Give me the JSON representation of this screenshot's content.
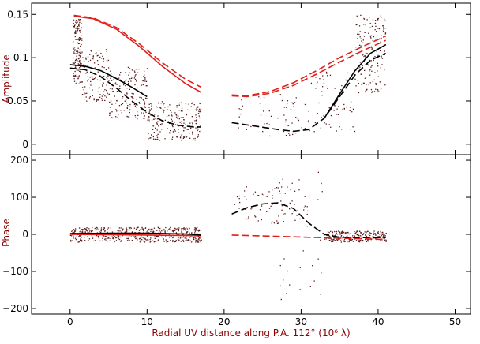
{
  "chart_data": {
    "type": "scatter",
    "xlabel": "Radial UV distance along P.A. 112°  (10⁶ λ)",
    "xlim": [
      -5,
      52
    ],
    "xticks": [
      0,
      10,
      20,
      30,
      40,
      50
    ],
    "grid": false,
    "legend": "none",
    "panels": [
      {
        "name": "amplitude",
        "ylabel": "Amplitude",
        "ylim": [
          -0.012,
          0.163
        ],
        "yticks": [
          0,
          0.05,
          0.1,
          0.15
        ],
        "ytick_labels": [
          "0",
          "0.05",
          "0.1",
          "0.15"
        ],
        "scatter_color": "#5a1a1a",
        "scatter_clusters": [
          {
            "x": [
              0.3,
              1.5
            ],
            "y": [
              0.07,
              0.145
            ],
            "n": 160
          },
          {
            "x": [
              1.5,
              5
            ],
            "y": [
              0.05,
              0.11
            ],
            "n": 120
          },
          {
            "x": [
              5,
              10
            ],
            "y": [
              0.03,
              0.09
            ],
            "n": 160
          },
          {
            "x": [
              10,
              17
            ],
            "y": [
              0.005,
              0.05
            ],
            "n": 220
          },
          {
            "x": [
              21,
              31
            ],
            "y": [
              0.01,
              0.06
            ],
            "n": 60
          },
          {
            "x": [
              31,
              37
            ],
            "y": [
              0.015,
              0.09
            ],
            "n": 70
          },
          {
            "x": [
              37,
              41
            ],
            "y": [
              0.06,
              0.15
            ],
            "n": 160
          }
        ],
        "series": [
          {
            "color": "#e0201a",
            "dash": "solid",
            "x": [
              0.5,
              3,
              6,
              9,
              12,
              15,
              17
            ],
            "y": [
              0.148,
              0.145,
              0.133,
              0.113,
              0.09,
              0.07,
              0.06
            ]
          },
          {
            "color": "#e0201a",
            "dash": "dashed",
            "x": [
              0.5,
              3,
              6,
              9,
              12,
              15,
              17
            ],
            "y": [
              0.149,
              0.146,
              0.135,
              0.116,
              0.094,
              0.075,
              0.066
            ]
          },
          {
            "color": "#e0201a",
            "dash": "dashed",
            "x": [
              21,
              23,
              26,
              29,
              32,
              35,
              38,
              41
            ],
            "y": [
              0.056,
              0.055,
              0.059,
              0.068,
              0.081,
              0.095,
              0.108,
              0.12
            ]
          },
          {
            "color": "#e0201a",
            "dash": "dashed",
            "x": [
              21,
              23,
              26,
              29,
              32,
              35,
              38,
              41
            ],
            "y": [
              0.057,
              0.056,
              0.061,
              0.071,
              0.085,
              0.1,
              0.113,
              0.125
            ]
          },
          {
            "color": "#000000",
            "dash": "solid",
            "x": [
              0,
              2,
              4,
              6,
              8,
              10
            ],
            "y": [
              0.092,
              0.09,
              0.085,
              0.076,
              0.066,
              0.055
            ]
          },
          {
            "color": "#000000",
            "dash": "dashed",
            "x": [
              0,
              2,
              4,
              6,
              8,
              10,
              12,
              14,
              16,
              17
            ],
            "y": [
              0.088,
              0.086,
              0.078,
              0.065,
              0.05,
              0.037,
              0.027,
              0.022,
              0.02,
              0.02
            ]
          },
          {
            "color": "#000000",
            "dash": "dashed",
            "x": [
              21,
              24,
              27,
              29,
              31,
              33,
              35,
              37,
              39,
              41
            ],
            "y": [
              0.025,
              0.021,
              0.017,
              0.015,
              0.017,
              0.03,
              0.055,
              0.08,
              0.097,
              0.105
            ]
          },
          {
            "color": "#000000",
            "dash": "solid",
            "x": [
              33,
              35,
              37,
              39,
              41
            ],
            "y": [
              0.03,
              0.058,
              0.085,
              0.105,
              0.115
            ]
          }
        ]
      },
      {
        "name": "phase",
        "ylabel": "Phase",
        "ylim": [
          -215,
          215
        ],
        "yticks": [
          -200,
          -100,
          0,
          100,
          200
        ],
        "ytick_labels": [
          "−200",
          "−100",
          "0",
          "100",
          "200"
        ],
        "scatter_color": "#5a1a1a",
        "scatter_clusters": [
          {
            "x": [
              0,
              17
            ],
            "y": [
              -20,
              20
            ],
            "n": 480
          },
          {
            "x": [
              21,
              31
            ],
            "y": [
              30,
              130
            ],
            "n": 70
          },
          {
            "x": [
              27,
              33
            ],
            "y": [
              -180,
              170
            ],
            "n": 40
          },
          {
            "x": [
              33,
              41
            ],
            "y": [
              -20,
              10
            ],
            "n": 220
          }
        ],
        "series": [
          {
            "color": "#e0201a",
            "dash": "solid",
            "x": [
              0,
              5,
              10,
              15,
              17
            ],
            "y": [
              0,
              -1,
              -2,
              -3,
              -4
            ]
          },
          {
            "color": "#e0201a",
            "dash": "dashed",
            "x": [
              21,
              26,
              31,
              36,
              41
            ],
            "y": [
              -2,
              -5,
              -8,
              -11,
              -14
            ]
          },
          {
            "color": "#000000",
            "dash": "solid",
            "x": [
              0,
              5,
              10,
              15,
              17
            ],
            "y": [
              2,
              3,
              3,
              1,
              -2
            ]
          },
          {
            "color": "#000000",
            "dash": "dashed",
            "x": [
              21,
              23,
              25,
              27,
              29,
              31,
              33,
              35,
              38,
              41
            ],
            "y": [
              55,
              72,
              82,
              85,
              70,
              30,
              0,
              -8,
              -9,
              -9
            ]
          }
        ]
      }
    ]
  }
}
